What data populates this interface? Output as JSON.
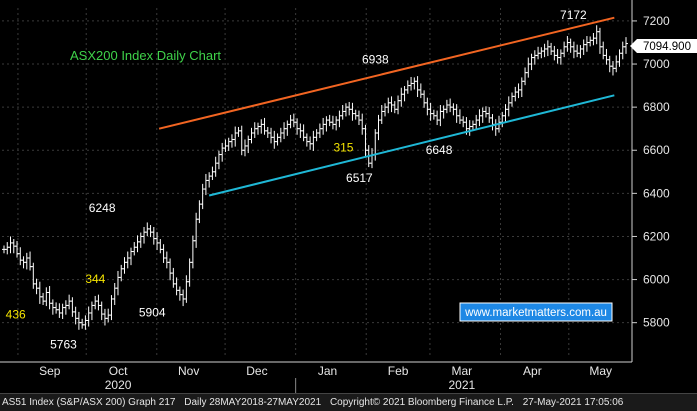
{
  "chart_data": {
    "type": "candlestick",
    "title": "ASX200 Index Daily Chart",
    "watermark": "www.marketmatters.com.au",
    "last_price_label": "7094.900",
    "ylim": [
      5650,
      7260
    ],
    "y_ticks": [
      5800,
      6000,
      6200,
      6400,
      6600,
      6800,
      7000,
      7200
    ],
    "y_tick_labels": [
      "5800",
      "6000",
      "6200",
      "6400",
      "6600",
      "6800",
      "7000",
      "7200"
    ],
    "x_month_labels": [
      "Sep",
      "Oct",
      "Nov",
      "Dec",
      "Jan",
      "Feb",
      "Mar",
      "Apr",
      "May"
    ],
    "x_year_labels": [
      "2020",
      "2021"
    ],
    "grid": true,
    "colors": {
      "background": "#000000",
      "candles": "#ffffff",
      "upper_trendline": "#f26522",
      "lower_trendline": "#1fb8d6",
      "title": "#3fd24a",
      "annotation_yellow": "#f5e400",
      "annotation_white": "#ffffff",
      "last_price_box": "#ffffff",
      "watermark_bg": "#1e88e5"
    },
    "series": [
      {
        "values": [
          6140,
          6150,
          6170,
          6155,
          6120,
          6090,
          6080,
          6100,
          6060,
          5980,
          5960,
          5920,
          5900,
          5940,
          5890,
          5870,
          5860,
          5845,
          5870,
          5880,
          5900,
          5850,
          5820,
          5800,
          5790,
          5810,
          5845,
          5880,
          5900,
          5880,
          5840,
          5820,
          5835,
          5910,
          5960,
          6010,
          6050,
          6080,
          6100,
          6130,
          6150,
          6175,
          6200,
          6220,
          6235,
          6220,
          6190,
          6170,
          6140,
          6100,
          6080,
          6030,
          5980,
          5950,
          5930,
          5910,
          5990,
          6080,
          6180,
          6280,
          6350,
          6420,
          6460,
          6480,
          6500,
          6540,
          6580,
          6610,
          6620,
          6640,
          6650,
          6680,
          6690,
          6600,
          6620,
          6650,
          6680,
          6700,
          6710,
          6720,
          6690,
          6680,
          6660,
          6640,
          6660,
          6680,
          6700,
          6720,
          6740,
          6730,
          6700,
          6690,
          6660,
          6640,
          6630,
          6660,
          6680,
          6700,
          6720,
          6740,
          6730,
          6720,
          6740,
          6760,
          6780,
          6800,
          6790,
          6770,
          6760,
          6740,
          6700,
          6600,
          6540,
          6580,
          6680,
          6740,
          6780,
          6800,
          6820,
          6810,
          6790,
          6830,
          6860,
          6880,
          6900,
          6910,
          6920,
          6880,
          6860,
          6820,
          6790,
          6770,
          6760,
          6740,
          6780,
          6790,
          6810,
          6800,
          6790,
          6760,
          6740,
          6730,
          6700,
          6710,
          6720,
          6740,
          6760,
          6780,
          6770,
          6750,
          6720,
          6700,
          6730,
          6760,
          6790,
          6820,
          6850,
          6870,
          6880,
          6920,
          6960,
          7000,
          7030,
          7040,
          7050,
          7060,
          7070,
          7080,
          7060,
          7040,
          7030,
          7050,
          7080,
          7100,
          7080,
          7060,
          7050,
          7070,
          7090,
          7100,
          7110,
          7120,
          7150,
          7080,
          7040,
          7020,
          6990,
          6980,
          7010,
          7050,
          7080,
          7095
        ],
        "x_start": "2020-08-25",
        "x_end": "2021-05-27"
      }
    ],
    "annotations": [
      {
        "text": "6938",
        "value": 6938,
        "date": "2021-02-05",
        "color": "white"
      },
      {
        "text": "7172",
        "value": 7172,
        "date": "2021-05-03",
        "color": "white"
      },
      {
        "text": "6248",
        "value": 6248,
        "date": "2020-10-08",
        "color": "white"
      },
      {
        "text": "6517",
        "value": 6517,
        "date": "2021-01-29",
        "color": "white"
      },
      {
        "text": "6648",
        "value": 6648,
        "date": "2021-03-05",
        "color": "white"
      },
      {
        "text": "5904",
        "value": 5904,
        "date": "2020-10-30",
        "color": "white"
      },
      {
        "text": "5763",
        "value": 5763,
        "date": "2020-09-21",
        "color": "white"
      },
      {
        "text": "436",
        "value": null,
        "date": "2020-08-31",
        "color": "yellow"
      },
      {
        "text": "344",
        "value": null,
        "date": "2020-10-05",
        "color": "yellow"
      },
      {
        "text": "315",
        "value": null,
        "date": "2021-01-22",
        "color": "yellow"
      }
    ],
    "trendlines": [
      {
        "name": "upper",
        "from": {
          "date": "2020-11-02",
          "value": 6700
        },
        "to": {
          "date": "2021-05-21",
          "value": 7215
        }
      },
      {
        "name": "lower",
        "from": {
          "date": "2020-11-24",
          "value": 6390
        },
        "to": {
          "date": "2021-05-21",
          "value": 6855
        }
      }
    ]
  },
  "footer": {
    "security": "AS51 Index (S&P/ASX 200) Graph 217",
    "range": "Daily 28MAY2018-27MAY2021",
    "copyright": "Copyright© 2021 Bloomberg Finance L.P.",
    "timestamp": "27-May-2021 17:05:06"
  }
}
